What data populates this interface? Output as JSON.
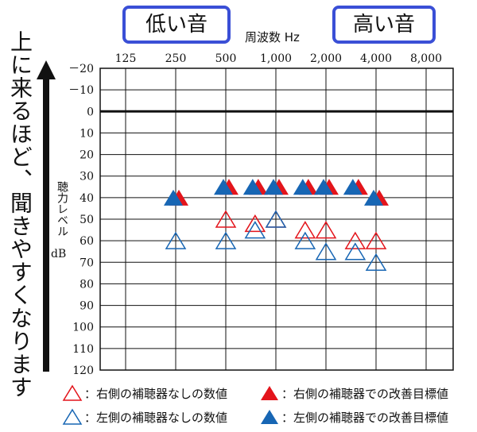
{
  "labels": {
    "vertical_note": "上に来るほど、聞きやすくなります",
    "low_tag": "低い音",
    "high_tag": "高い音",
    "x_title": "周波数 Hz",
    "y_title": "聴力レベル",
    "y_unit": "dB"
  },
  "legend": {
    "right_without": "：右側の補聴器なしの数値",
    "right_target": "：右側の補聴器での改善目標値",
    "left_without": "：左側の補聴器なしの数値",
    "left_target": "：左側の補聴器での改善目標値"
  },
  "colors": {
    "right": "#e3141b",
    "left": "#1766b4",
    "tag_border": "#3a4fd6"
  },
  "chart_data": {
    "type": "scatter",
    "x_tick_labels": [
      "125",
      "250",
      "500",
      "1,000",
      "2,000",
      "4,000",
      "8,000"
    ],
    "x_ticks": [
      125,
      250,
      500,
      1000,
      2000,
      4000,
      8000
    ],
    "x_scale": "log2",
    "y_tick_labels": [
      "－20",
      "－10",
      "0",
      "10",
      "20",
      "30",
      "40",
      "50",
      "60",
      "70",
      "80",
      "90",
      "100",
      "110",
      "120"
    ],
    "y_ticks": [
      -20,
      -10,
      0,
      10,
      20,
      30,
      40,
      50,
      60,
      70,
      80,
      90,
      100,
      110,
      120
    ],
    "ylim": [
      -20,
      120
    ],
    "y_inverted": true,
    "xlabel": "周波数 Hz",
    "ylabel": "聴力レベル dB",
    "grid": true,
    "series": [
      {
        "name": "右側の補聴器なしの数値",
        "marker": "open-triangle",
        "color": "#e3141b",
        "x": [
          500,
          750,
          1000,
          1500,
          2000,
          3000,
          4000
        ],
        "y": [
          50,
          52,
          50,
          55,
          55,
          60,
          60
        ]
      },
      {
        "name": "左側の補聴器なしの数値",
        "marker": "open-triangle",
        "color": "#1766b4",
        "x": [
          250,
          500,
          750,
          1000,
          1500,
          2000,
          3000,
          4000
        ],
        "y": [
          60,
          60,
          55,
          50,
          60,
          65,
          65,
          70
        ]
      },
      {
        "name": "右側の補聴器での改善目標値",
        "marker": "filled-triangle",
        "color": "#e3141b",
        "x": [
          250,
          500,
          750,
          1000,
          1500,
          2000,
          3000,
          4000
        ],
        "y": [
          40,
          35,
          35,
          35,
          35,
          35,
          35,
          40
        ]
      },
      {
        "name": "左側の補聴器での改善目標値",
        "marker": "filled-triangle",
        "color": "#1766b4",
        "x": [
          250,
          500,
          750,
          1000,
          1500,
          2000,
          3000,
          4000
        ],
        "y": [
          40,
          35,
          35,
          35,
          35,
          35,
          35,
          40
        ]
      }
    ]
  }
}
